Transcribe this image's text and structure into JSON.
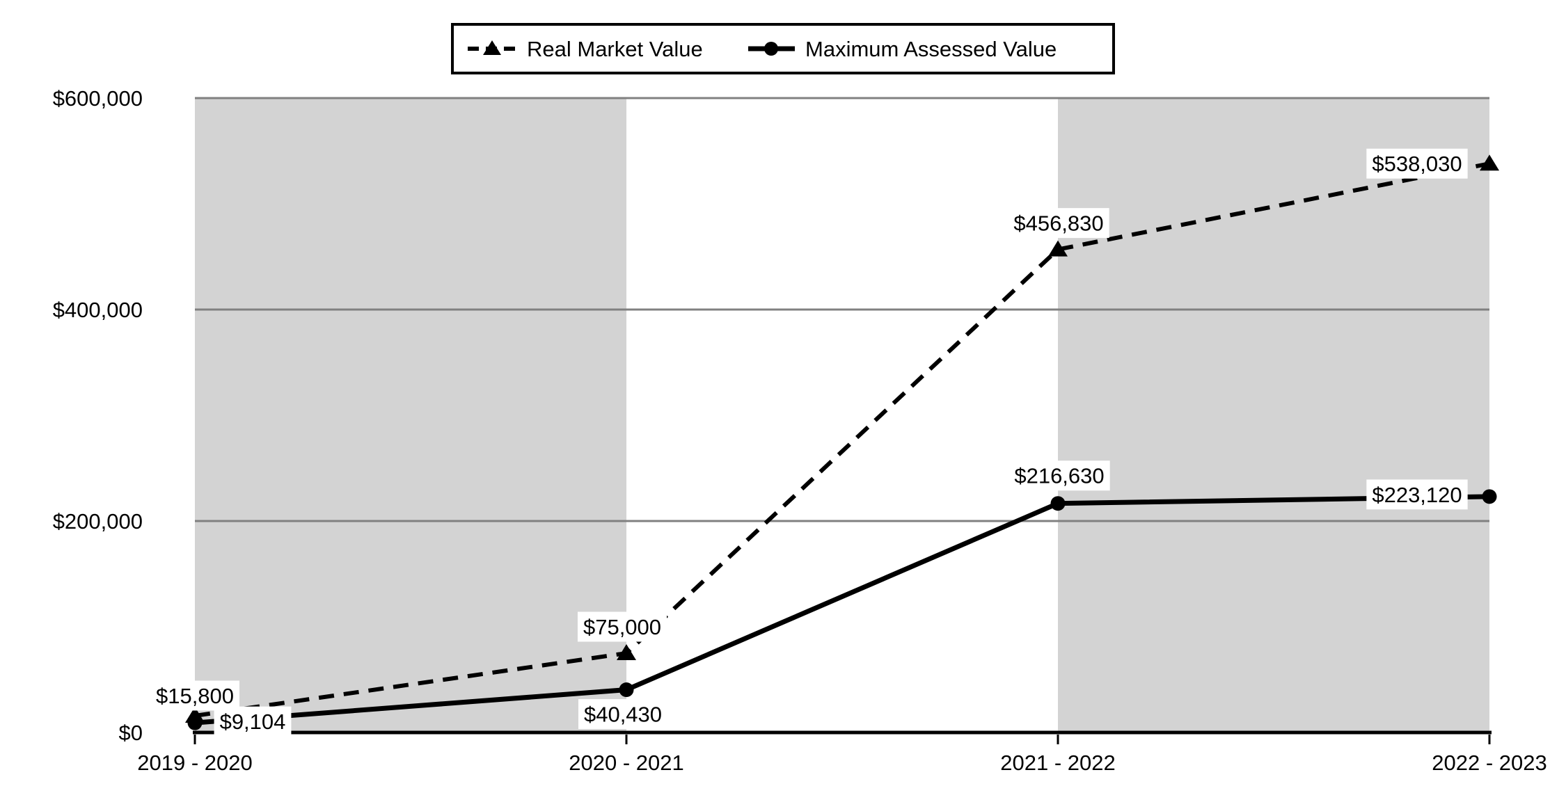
{
  "chart_data": {
    "type": "line",
    "title": "",
    "xlabel": "",
    "ylabel": "",
    "categories": [
      "2019 - 2020",
      "2020 - 2021",
      "2021 - 2022",
      "2022 - 2023"
    ],
    "series": [
      {
        "name": "Real Market Value",
        "values": [
          15800,
          75000,
          456830,
          538030
        ],
        "data_labels": [
          "$15,800",
          "$75,000",
          "$456,830",
          "$538,030"
        ],
        "line_style": "dashed",
        "marker": "triangle",
        "color": "#000000"
      },
      {
        "name": "Maximum Assessed Value",
        "values": [
          9104,
          40430,
          216630,
          223120
        ],
        "data_labels": [
          "$9,104",
          "$40,430",
          "$216,630",
          "$223,120"
        ],
        "line_style": "solid",
        "marker": "circle",
        "color": "#000000"
      }
    ],
    "ylim": [
      0,
      600000
    ],
    "y_ticks": [
      {
        "value": 0,
        "label": "$0"
      },
      {
        "value": 200000,
        "label": "$200,000"
      },
      {
        "value": 400000,
        "label": "$400,000"
      },
      {
        "value": 600000,
        "label": "$600,000"
      }
    ],
    "grid": "horizontal",
    "legend_position": "top-center",
    "plot_bands": {
      "between_category_indexes": [
        [
          0,
          1
        ],
        [
          2,
          3
        ]
      ],
      "fill": "#d3d3d3"
    },
    "colors": {
      "series_line": "#000000",
      "gridline": "#808080",
      "axis": "#000000",
      "band_fill": "#d3d3d3",
      "data_label_bg": "#ffffff",
      "text": "#000000",
      "background": "#ffffff"
    }
  }
}
